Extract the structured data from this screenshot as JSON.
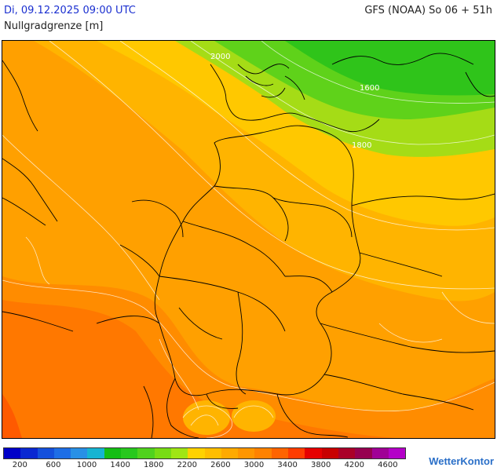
{
  "header": {
    "date_label": "Di, 09.12.2025 09:00 UTC",
    "model_label": "GFS (NOAA) So 06 + 51h",
    "param_label": "Nullgradgrenze [m]"
  },
  "map": {
    "contour_labels": [
      "2000",
      "1600",
      "1800"
    ],
    "colors": {
      "green_dark": "#2fc41a",
      "green": "#5fd21a",
      "yellow_green": "#a5dc16",
      "yellow": "#ffc800",
      "light_orange": "#ffb400",
      "orange": "#ffa000",
      "dark_orange": "#ff8c00",
      "red_orange": "#ff7800",
      "red": "#ff5a00"
    }
  },
  "legend": {
    "colors": [
      "#0000c8",
      "#0a28d2",
      "#1450dc",
      "#1e6ee6",
      "#2890e6",
      "#16b4d2",
      "#14be14",
      "#28c81e",
      "#50d21e",
      "#78dc14",
      "#a0e614",
      "#ffd200",
      "#ffbe00",
      "#ffaa00",
      "#ff9600",
      "#ff8200",
      "#ff6400",
      "#ff3c00",
      "#e60000",
      "#c80000",
      "#aa0028",
      "#960050",
      "#a00096",
      "#b400c8"
    ],
    "ticks": [
      "200",
      "600",
      "1000",
      "1400",
      "1800",
      "2200",
      "2600",
      "3000",
      "3400",
      "3800",
      "4200",
      "4600"
    ]
  },
  "brand": {
    "name": "WetterKontor"
  }
}
